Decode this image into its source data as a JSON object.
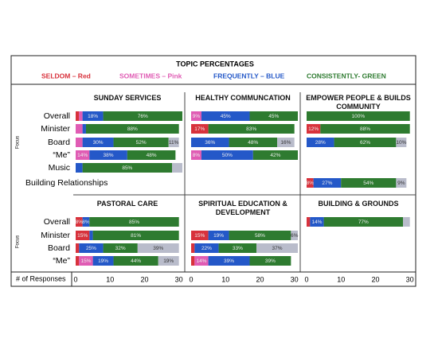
{
  "title": "TOPIC PERCENTAGES",
  "legend": [
    "SELDOM – Red",
    "SOMETIMES – Pink",
    "FREQUENTLY – BLUE",
    "CONSISTENTLY- GREEN"
  ],
  "series_colors": [
    "#d8323c",
    "#e05cb4",
    "#2458c8",
    "#2e7b30",
    "#b9bccb"
  ],
  "focus_label": "Focus",
  "row_groups": [
    [
      "Overall",
      "Minister",
      "Board",
      "“Me”",
      "Music",
      "Building Relationships"
    ],
    [
      "Overall",
      "Minister",
      "Board",
      "“Me”"
    ]
  ],
  "axis": {
    "label": "# of Responses",
    "xlim": [
      0,
      31
    ],
    "xticks": [
      0,
      10,
      20,
      30
    ]
  },
  "chart_data": [
    {
      "type": "bar",
      "title": "SUNDAY SERVICES",
      "series": [
        {
          "values": [
            1,
            null,
            null,
            null,
            null,
            null
          ],
          "percent_labels": [
            null,
            null,
            null,
            null,
            null,
            null
          ]
        },
        {
          "values": [
            1,
            2,
            2,
            4,
            null,
            null
          ],
          "percent_labels": [
            null,
            null,
            null,
            "14%",
            null,
            null
          ]
        },
        {
          "values": [
            6,
            1,
            9,
            11,
            2,
            null
          ],
          "percent_labels": [
            "18%",
            null,
            "30%",
            "38%",
            null,
            null
          ]
        },
        {
          "values": [
            23,
            27,
            16,
            14,
            26,
            null
          ],
          "percent_labels": [
            "76%",
            "88%",
            "52%",
            "48%",
            "85%",
            null
          ]
        },
        {
          "values": [
            null,
            null,
            3,
            null,
            3,
            null
          ],
          "percent_labels": [
            null,
            null,
            "11%",
            null,
            null,
            null
          ]
        }
      ]
    },
    {
      "type": "bar",
      "title": "HEALTHY COMMUNCATION",
      "series": [
        {
          "values": [
            null,
            5,
            null,
            null,
            null,
            null
          ],
          "percent_labels": [
            null,
            "17%",
            null,
            null,
            null,
            null
          ]
        },
        {
          "values": [
            3,
            null,
            null,
            3,
            null,
            null
          ],
          "percent_labels": [
            "9%",
            null,
            null,
            "8%",
            null,
            null
          ]
        },
        {
          "values": [
            14,
            null,
            11,
            15,
            null,
            null
          ],
          "percent_labels": [
            "45%",
            null,
            "36%",
            "50%",
            null,
            null
          ]
        },
        {
          "values": [
            14,
            25,
            14,
            13,
            null,
            null
          ],
          "percent_labels": [
            "45%",
            "83%",
            "48%",
            "42%",
            null,
            null
          ]
        },
        {
          "values": [
            null,
            null,
            5,
            null,
            null,
            null
          ],
          "percent_labels": [
            null,
            null,
            "16%",
            null,
            null,
            null
          ]
        }
      ]
    },
    {
      "type": "bar",
      "title": "EMPOWER PEOPLE & BUILDS COMMUNITY",
      "series": [
        {
          "values": [
            null,
            4,
            null,
            null,
            null,
            2
          ],
          "percent_labels": [
            null,
            "12%",
            null,
            null,
            null,
            "8%"
          ]
        },
        {
          "values": [
            null,
            null,
            null,
            null,
            null,
            null
          ],
          "percent_labels": [
            null,
            null,
            null,
            null,
            null,
            null
          ]
        },
        {
          "values": [
            null,
            null,
            8,
            null,
            null,
            8
          ],
          "percent_labels": [
            null,
            null,
            "28%",
            null,
            null,
            "27%"
          ]
        },
        {
          "values": [
            30,
            26,
            18,
            null,
            null,
            16
          ],
          "percent_labels": [
            "100%",
            "88%",
            "62%",
            null,
            null,
            "54%"
          ]
        },
        {
          "values": [
            null,
            null,
            3,
            null,
            null,
            3
          ],
          "percent_labels": [
            null,
            null,
            "10%",
            null,
            null,
            "9%"
          ]
        }
      ]
    },
    {
      "type": "bar",
      "title": "PASTORAL CARE",
      "series": [
        {
          "values": [
            2,
            4,
            1,
            1
          ],
          "percent_labels": [
            "8%",
            "15%",
            null,
            null
          ]
        },
        {
          "values": [
            null,
            null,
            null,
            4
          ],
          "percent_labels": [
            null,
            null,
            null,
            "15%"
          ]
        },
        {
          "values": [
            2,
            1,
            7,
            6
          ],
          "percent_labels": [
            "8%",
            null,
            "25%",
            "19%"
          ]
        },
        {
          "values": [
            26,
            25,
            10,
            13
          ],
          "percent_labels": [
            "85%",
            "81%",
            "32%",
            "44%"
          ]
        },
        {
          "values": [
            null,
            null,
            12,
            6
          ],
          "percent_labels": [
            null,
            null,
            "39%",
            "19%"
          ]
        }
      ]
    },
    {
      "type": "bar",
      "title": "SPIRITUAL EDUCATION & DEVELOPMENT",
      "series": [
        {
          "values": [
            null,
            5,
            1,
            1
          ],
          "percent_labels": [
            null,
            "15%",
            null,
            null
          ]
        },
        {
          "values": [
            null,
            null,
            null,
            4
          ],
          "percent_labels": [
            null,
            null,
            null,
            "14%"
          ]
        },
        {
          "values": [
            null,
            6,
            7,
            12
          ],
          "percent_labels": [
            null,
            "19%",
            "22%",
            "39%"
          ]
        },
        {
          "values": [
            null,
            18,
            11,
            12
          ],
          "percent_labels": [
            null,
            "58%",
            "33%",
            "39%"
          ]
        },
        {
          "values": [
            null,
            2,
            12,
            null
          ],
          "percent_labels": [
            null,
            "6%",
            "37%",
            null
          ]
        }
      ]
    },
    {
      "type": "bar",
      "title": "BUILDING & GROUNDS",
      "series": [
        {
          "values": [
            1,
            null,
            null,
            null
          ],
          "percent_labels": [
            null,
            null,
            null,
            null
          ]
        },
        {
          "values": [
            null,
            null,
            null,
            null
          ],
          "percent_labels": [
            null,
            null,
            null,
            null
          ]
        },
        {
          "values": [
            4,
            null,
            null,
            null
          ],
          "percent_labels": [
            "14%",
            null,
            null,
            null
          ]
        },
        {
          "values": [
            23,
            null,
            null,
            null
          ],
          "percent_labels": [
            "77%",
            null,
            null,
            null
          ]
        },
        {
          "values": [
            2,
            null,
            null,
            null
          ],
          "percent_labels": [
            null,
            null,
            null,
            null
          ]
        }
      ]
    }
  ]
}
